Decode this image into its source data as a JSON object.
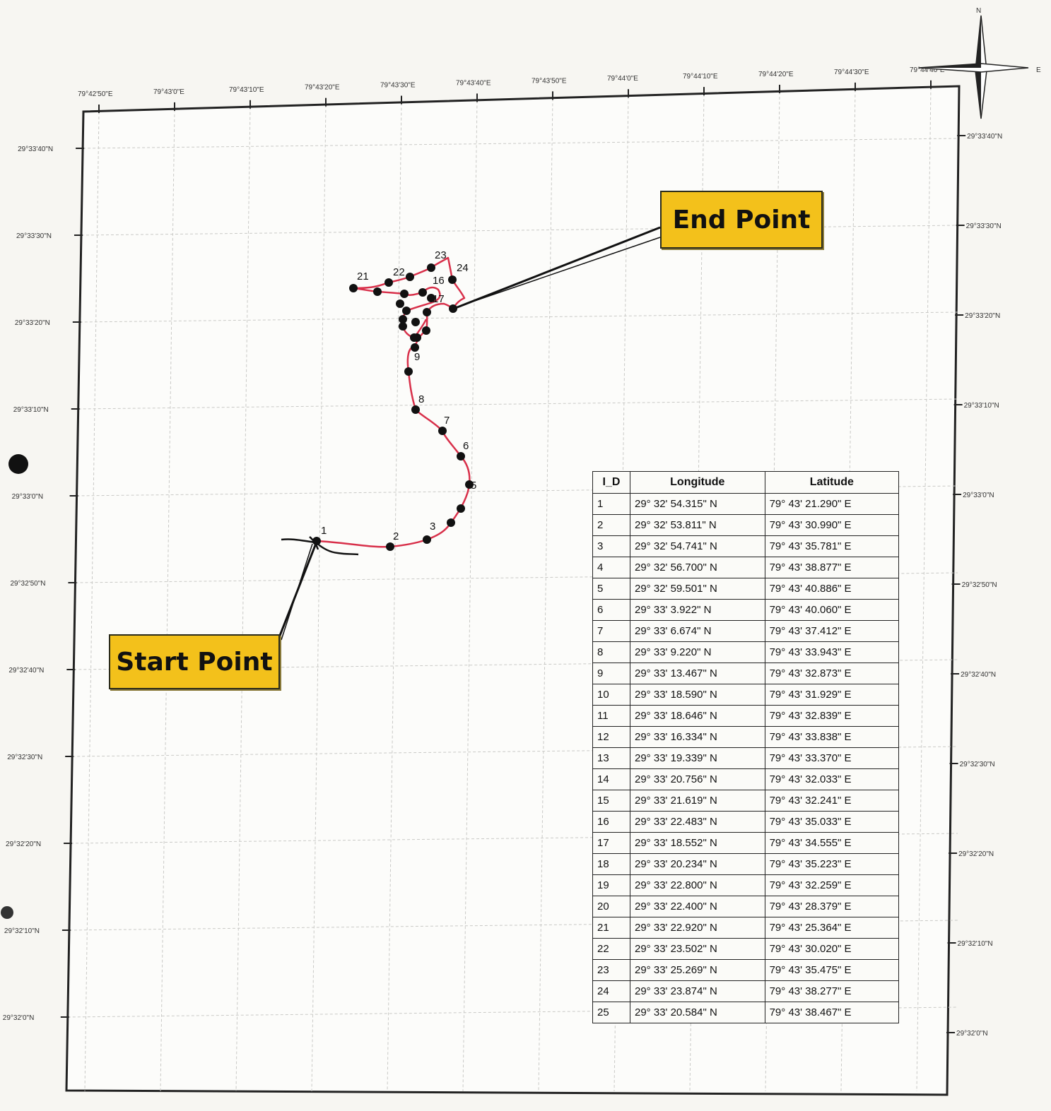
{
  "north_arrow": {
    "n_label": "N",
    "e_label": "E"
  },
  "top_axis_labels": [
    "79°42'50\"E",
    "79°43'0\"E",
    "79°43'10\"E",
    "79°43'20\"E",
    "79°43'30\"E",
    "79°43'40\"E",
    "79°43'50\"E",
    "79°44'0\"E",
    "79°44'10\"E",
    "79°44'20\"E",
    "79°44'30\"E",
    "79°44'40\"E"
  ],
  "left_axis_labels": [
    "29°33'40\"N",
    "29°33'30\"N",
    "29°33'20\"N",
    "29°33'10\"N",
    "29°33'0\"N",
    "29°32'50\"N",
    "29°32'40\"N",
    "29°32'30\"N",
    "29°32'20\"N",
    "29°32'10\"N",
    "29°32'0\"N"
  ],
  "right_axis_labels": [
    "29°33'40\"N",
    "29°33'30\"N",
    "29°33'20\"N",
    "29°33'10\"N",
    "29°33'0\"N",
    "29°32'50\"N",
    "29°32'40\"N",
    "29°32'30\"N",
    "29°32'20\"N",
    "29°32'10\"N",
    "29°32'0\"N"
  ],
  "callouts": {
    "end": "End Point",
    "start": "Start Point"
  },
  "track_color": "#d8304a",
  "callout_color": "#f3c11b",
  "point_labels": [
    "1",
    "2",
    "3",
    "5",
    "6",
    "7",
    "8",
    "9",
    "16",
    "17",
    "21",
    "22",
    "23",
    "24"
  ],
  "table": {
    "headers": [
      "I_D",
      "Longitude",
      "Latitude"
    ],
    "rows": [
      {
        "id": "1",
        "lng": "29° 32' 54.315\" N",
        "lat": "79° 43' 21.290\" E"
      },
      {
        "id": "2",
        "lng": "29° 32' 53.811\" N",
        "lat": "79° 43' 30.990\" E"
      },
      {
        "id": "3",
        "lng": "29° 32' 54.741\" N",
        "lat": "79° 43' 35.781\" E"
      },
      {
        "id": "4",
        "lng": "29° 32' 56.700\" N",
        "lat": "79° 43' 38.877\" E"
      },
      {
        "id": "5",
        "lng": "29° 32' 59.501\" N",
        "lat": "79° 43' 40.886\" E"
      },
      {
        "id": "6",
        "lng": "29° 33' 3.922\" N",
        "lat": "79° 43' 40.060\" E"
      },
      {
        "id": "7",
        "lng": "29° 33' 6.674\" N",
        "lat": "79° 43' 37.412\" E"
      },
      {
        "id": "8",
        "lng": "29° 33' 9.220\" N",
        "lat": "79° 43' 33.943\" E"
      },
      {
        "id": "9",
        "lng": "29° 33' 13.467\" N",
        "lat": "79° 43' 32.873\" E"
      },
      {
        "id": "10",
        "lng": "29° 33' 18.590\" N",
        "lat": "79° 43' 31.929\" E"
      },
      {
        "id": "11",
        "lng": "29° 33' 18.646\" N",
        "lat": "79° 43' 32.839\" E"
      },
      {
        "id": "12",
        "lng": "29° 33' 16.334\" N",
        "lat": "79° 43' 33.838\" E"
      },
      {
        "id": "13",
        "lng": "29° 33' 19.339\" N",
        "lat": "79° 43' 33.370\" E"
      },
      {
        "id": "14",
        "lng": "29° 33' 20.756\" N",
        "lat": "79° 43' 32.033\" E"
      },
      {
        "id": "15",
        "lng": "29° 33' 21.619\" N",
        "lat": "79° 43' 32.241\" E"
      },
      {
        "id": "16",
        "lng": "29° 33' 22.483\" N",
        "lat": "79° 43' 35.033\" E"
      },
      {
        "id": "17",
        "lng": "29° 33' 18.552\" N",
        "lat": "79° 43' 34.555\" E"
      },
      {
        "id": "18",
        "lng": "29° 33' 20.234\" N",
        "lat": "79° 43' 35.223\" E"
      },
      {
        "id": "19",
        "lng": "29° 33' 22.800\" N",
        "lat": "79° 43' 32.259\" E"
      },
      {
        "id": "20",
        "lng": "29° 33' 22.400\" N",
        "lat": "79° 43' 28.379\" E"
      },
      {
        "id": "21",
        "lng": "29° 33' 22.920\" N",
        "lat": "79° 43' 25.364\" E"
      },
      {
        "id": "22",
        "lng": "29° 33' 23.502\" N",
        "lat": "79° 43' 30.020\" E"
      },
      {
        "id": "23",
        "lng": "29° 33' 25.269\" N",
        "lat": "79° 43' 35.475\" E"
      },
      {
        "id": "24",
        "lng": "29° 33' 23.874\" N",
        "lat": "79° 43' 38.277\" E"
      },
      {
        "id": "25",
        "lng": "29° 33' 20.584\" N",
        "lat": "79° 43' 38.467\" E"
      }
    ]
  }
}
